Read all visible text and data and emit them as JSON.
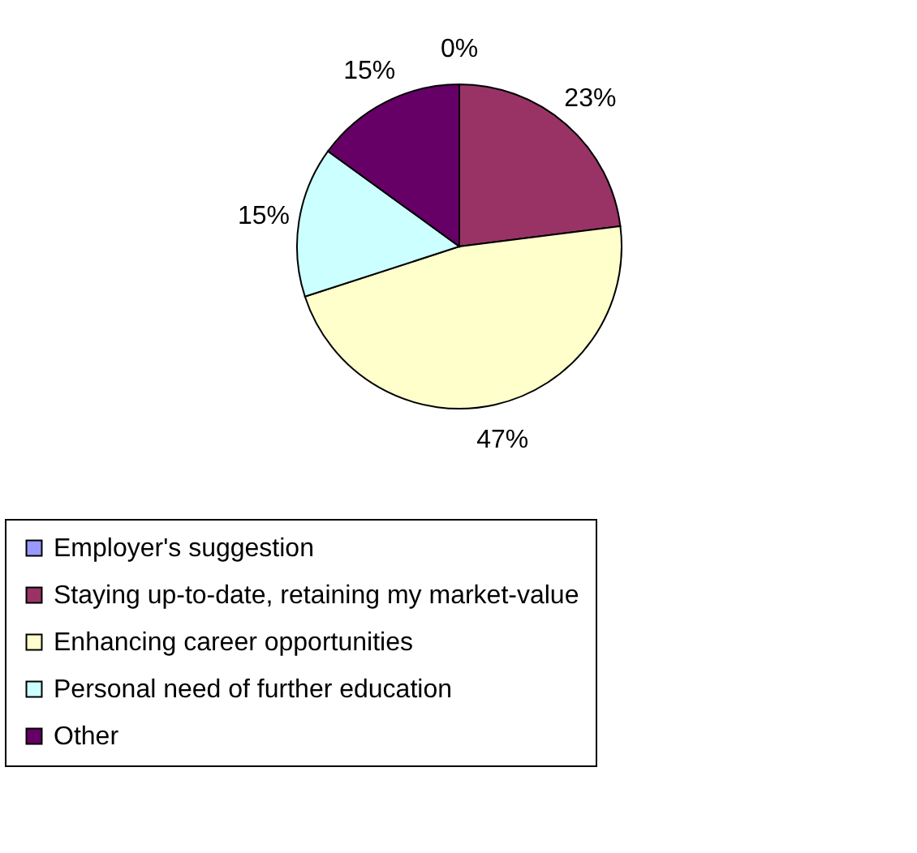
{
  "chart_data": {
    "type": "pie",
    "categories": [
      "Employer's suggestion",
      "Staying up-to-date, retaining my market-value",
      "Enhancing career opportunities",
      "Personal need of further education",
      "Other"
    ],
    "values": [
      0,
      23,
      47,
      15,
      15
    ],
    "colors": [
      "#9999ff",
      "#993366",
      "#ffffcc",
      "#ccffff",
      "#660066"
    ],
    "value_labels": [
      "0%",
      "23%",
      "47%",
      "15%",
      "15%"
    ],
    "legend": "bottom"
  }
}
